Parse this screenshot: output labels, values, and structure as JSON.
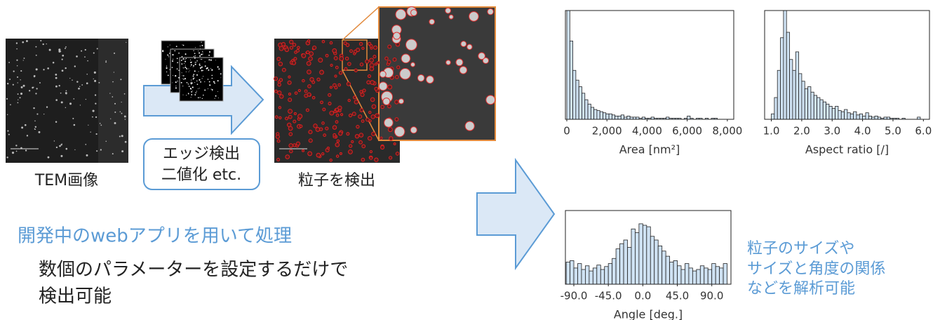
{
  "left": {
    "tem_label": "TEM画像",
    "process_box": [
      "エッジ検出",
      "二値化 etc."
    ],
    "detect_label": "粒子を検出",
    "webapp": "開発中のwebアプリを用いて処理",
    "note": [
      "数個のパラメーターを設定するだけで",
      "検出可能"
    ]
  },
  "right_note": [
    "粒子のサイズや",
    "サイズと角度の関係",
    "などを解析可能"
  ],
  "chart_data": [
    {
      "type": "histogram",
      "xlabel": "Area [nm²]",
      "color": "#cfe2f3",
      "bins": [
        0,
        150,
        300,
        450,
        600,
        750,
        900,
        1050,
        1200,
        1350,
        1500,
        1650,
        1800,
        1950,
        2100,
        2250,
        2400,
        2550,
        2700,
        2850,
        3000,
        3150,
        3300,
        3450,
        3600,
        3750,
        3900,
        4050,
        4200,
        4350,
        4500,
        4650,
        4800,
        4950,
        5100,
        5250,
        5400,
        5550,
        5700,
        5850,
        6000,
        6150,
        6300,
        6450,
        6600,
        6750,
        6900,
        7050,
        7200,
        7350,
        7500
      ],
      "values": [
        100,
        72,
        45,
        36,
        30,
        24,
        18,
        14,
        11,
        9,
        8,
        7,
        6,
        5,
        5,
        4,
        3,
        3,
        4,
        2,
        3,
        2,
        2,
        2,
        1,
        2,
        1,
        1,
        2,
        1,
        1,
        1,
        1,
        2,
        1,
        1,
        1,
        1,
        0,
        1,
        3,
        1,
        0,
        1,
        1,
        0,
        1,
        0,
        1,
        1
      ],
      "xlim": [
        -70,
        8320
      ],
      "ylim": [
        0,
        100
      ],
      "xticks": [
        0,
        {
          "value": 2000,
          "label": "2,000"
        },
        {
          "value": 4000,
          "label": "4,000"
        },
        {
          "value": 6000,
          "label": "6,000"
        },
        {
          "value": 8000,
          "label": "8,000"
        }
      ]
    },
    {
      "type": "histogram",
      "xlabel": "Aspect ratio [/]",
      "color": "#cfe2f3",
      "bins": [
        1.0,
        1.1,
        1.2,
        1.3,
        1.4,
        1.5,
        1.6,
        1.7,
        1.8,
        1.9,
        2.0,
        2.1,
        2.2,
        2.3,
        2.4,
        2.5,
        2.6,
        2.7,
        2.8,
        2.9,
        3.0,
        3.1,
        3.2,
        3.3,
        3.4,
        3.5,
        3.6,
        3.7,
        3.8,
        3.9,
        4.0,
        4.1,
        4.2,
        4.3,
        4.4,
        4.5,
        4.6,
        4.7,
        4.8,
        4.9,
        5.0,
        5.1,
        5.2,
        5.3,
        5.4,
        5.5,
        5.6,
        5.7,
        5.8,
        5.9
      ],
      "values": [
        5,
        20,
        45,
        75,
        100,
        80,
        55,
        45,
        62,
        42,
        35,
        28,
        30,
        25,
        22,
        20,
        18,
        16,
        14,
        12,
        10,
        12,
        8,
        7,
        9,
        6,
        5,
        7,
        4,
        5,
        3,
        6,
        3,
        2,
        3,
        2,
        1,
        2,
        2,
        1,
        1,
        1,
        0,
        1,
        0,
        0,
        0,
        0,
        2
      ],
      "xlim": [
        0.78,
        6.2
      ],
      "ylim": [
        0,
        100
      ],
      "xticks": [
        {
          "value": 1,
          "label": "1.0"
        },
        {
          "value": 2,
          "label": "2.0"
        },
        {
          "value": 3,
          "label": "3.0"
        },
        {
          "value": 4,
          "label": "4.0"
        },
        {
          "value": 5,
          "label": "5.0"
        },
        {
          "value": 6,
          "label": "6.0"
        }
      ]
    },
    {
      "type": "histogram",
      "xlabel": "Angle [deg.]",
      "color": "#cfe2f3",
      "bins": [
        -100,
        -95,
        -90,
        -85,
        -80,
        -75,
        -70,
        -65,
        -60,
        -55,
        -50,
        -45,
        -40,
        -35,
        -30,
        -25,
        -20,
        -15,
        -10,
        -5,
        0,
        5,
        10,
        15,
        20,
        25,
        30,
        35,
        40,
        45,
        50,
        55,
        60,
        65,
        70,
        75,
        80,
        85,
        90,
        95,
        100,
        105,
        110
      ],
      "values": [
        30,
        32,
        22,
        28,
        20,
        25,
        18,
        22,
        26,
        20,
        24,
        28,
        35,
        48,
        55,
        60,
        50,
        75,
        70,
        82,
        80,
        78,
        65,
        60,
        52,
        45,
        38,
        30,
        32,
        25,
        20,
        28,
        22,
        18,
        20,
        25,
        22,
        20,
        28,
        24,
        22,
        28
      ],
      "xlim": [
        -101,
        115
      ],
      "ylim": [
        0,
        100
      ],
      "xticks": [
        {
          "value": -90,
          "label": "-90.0"
        },
        {
          "value": -45,
          "label": "-45.0"
        },
        {
          "value": 0,
          "label": "0.0"
        },
        {
          "value": 45,
          "label": "45.0"
        },
        {
          "value": 90,
          "label": "90.0"
        }
      ]
    }
  ]
}
